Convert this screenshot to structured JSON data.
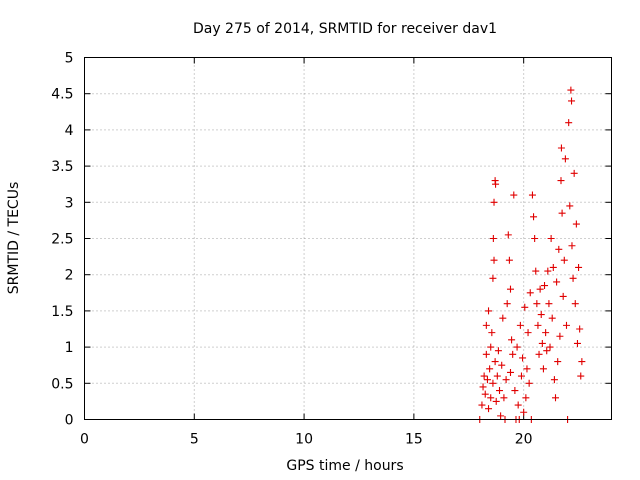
{
  "chart_data": {
    "type": "scatter",
    "title": "Day 275 of 2014, SRMTID for receiver dav1",
    "xlabel": "GPS time / hours",
    "ylabel": "SRMTID / TECUs",
    "xlim": [
      0,
      24
    ],
    "ylim": [
      0,
      5
    ],
    "x_ticks": [
      0,
      5,
      10,
      15,
      20
    ],
    "x_tick_labels": [
      "0",
      "5",
      "10",
      "15",
      "20"
    ],
    "y_ticks": [
      0,
      0.5,
      1,
      1.5,
      2,
      2.5,
      3,
      3.5,
      4,
      4.5,
      5
    ],
    "y_tick_labels": [
      "0",
      "0.5",
      "1",
      "1.5",
      "2",
      "2.5",
      "3",
      "3.5",
      "4",
      "4.5",
      "5"
    ],
    "grid": true,
    "marker": "+",
    "marker_color": "#e00000",
    "series": [
      {
        "name": "dav1",
        "points": [
          [
            18.0,
            0.0
          ],
          [
            18.1,
            0.2
          ],
          [
            18.15,
            0.45
          ],
          [
            18.2,
            0.6
          ],
          [
            18.25,
            0.35
          ],
          [
            18.3,
            0.9
          ],
          [
            18.3,
            1.3
          ],
          [
            18.35,
            0.55
          ],
          [
            18.4,
            0.15
          ],
          [
            18.4,
            1.5
          ],
          [
            18.45,
            0.7
          ],
          [
            18.5,
            0.3
          ],
          [
            18.5,
            1.0
          ],
          [
            18.55,
            1.2
          ],
          [
            18.6,
            0.5
          ],
          [
            18.6,
            1.95
          ],
          [
            18.62,
            2.5
          ],
          [
            18.65,
            2.2
          ],
          [
            18.65,
            3.0
          ],
          [
            18.7,
            3.3
          ],
          [
            18.72,
            3.25
          ],
          [
            18.7,
            0.8
          ],
          [
            18.75,
            0.25
          ],
          [
            18.8,
            0.6
          ],
          [
            18.85,
            0.95
          ],
          [
            18.9,
            0.4
          ],
          [
            18.95,
            0.05
          ],
          [
            19.0,
            0.75
          ],
          [
            19.05,
            1.4
          ],
          [
            19.1,
            0.3
          ],
          [
            19.15,
            0.0
          ],
          [
            19.2,
            0.55
          ],
          [
            19.25,
            1.6
          ],
          [
            19.3,
            2.55
          ],
          [
            19.35,
            2.2
          ],
          [
            19.4,
            1.8
          ],
          [
            19.4,
            0.65
          ],
          [
            19.45,
            1.1
          ],
          [
            19.5,
            0.9
          ],
          [
            19.55,
            3.1
          ],
          [
            19.6,
            0.4
          ],
          [
            19.65,
            0.0
          ],
          [
            19.7,
            1.0
          ],
          [
            19.75,
            0.2
          ],
          [
            19.8,
            0.0
          ],
          [
            19.85,
            1.3
          ],
          [
            19.9,
            0.6
          ],
          [
            19.95,
            0.85
          ],
          [
            20.0,
            0.1
          ],
          [
            20.05,
            1.55
          ],
          [
            20.1,
            0.3
          ],
          [
            20.15,
            0.7
          ],
          [
            20.2,
            1.2
          ],
          [
            20.25,
            0.5
          ],
          [
            20.3,
            1.75
          ],
          [
            20.35,
            0.0
          ],
          [
            20.4,
            3.1
          ],
          [
            20.45,
            2.8
          ],
          [
            20.5,
            2.5
          ],
          [
            20.55,
            2.05
          ],
          [
            20.6,
            1.6
          ],
          [
            20.65,
            1.3
          ],
          [
            20.7,
            0.9
          ],
          [
            20.75,
            1.8
          ],
          [
            20.8,
            1.45
          ],
          [
            20.85,
            1.05
          ],
          [
            20.9,
            0.7
          ],
          [
            20.95,
            1.85
          ],
          [
            21.0,
            1.2
          ],
          [
            21.05,
            0.95
          ],
          [
            21.1,
            2.05
          ],
          [
            21.15,
            1.6
          ],
          [
            21.2,
            1.0
          ],
          [
            21.25,
            2.5
          ],
          [
            21.3,
            1.4
          ],
          [
            21.35,
            2.1
          ],
          [
            21.4,
            0.55
          ],
          [
            21.45,
            0.3
          ],
          [
            21.5,
            1.9
          ],
          [
            21.55,
            0.8
          ],
          [
            21.6,
            2.35
          ],
          [
            21.65,
            1.15
          ],
          [
            21.7,
            3.3
          ],
          [
            21.72,
            3.75
          ],
          [
            21.75,
            2.85
          ],
          [
            21.8,
            1.7
          ],
          [
            21.85,
            2.2
          ],
          [
            21.9,
            3.6
          ],
          [
            21.95,
            1.3
          ],
          [
            22.0,
            0.0
          ],
          [
            22.05,
            4.1
          ],
          [
            22.1,
            2.95
          ],
          [
            22.15,
            4.55
          ],
          [
            22.18,
            4.4
          ],
          [
            22.2,
            2.4
          ],
          [
            22.25,
            1.95
          ],
          [
            22.3,
            3.4
          ],
          [
            22.35,
            1.6
          ],
          [
            22.4,
            2.7
          ],
          [
            22.45,
            1.05
          ],
          [
            22.5,
            2.1
          ],
          [
            22.55,
            1.25
          ],
          [
            22.6,
            0.6
          ],
          [
            22.65,
            0.8
          ]
        ]
      }
    ]
  }
}
